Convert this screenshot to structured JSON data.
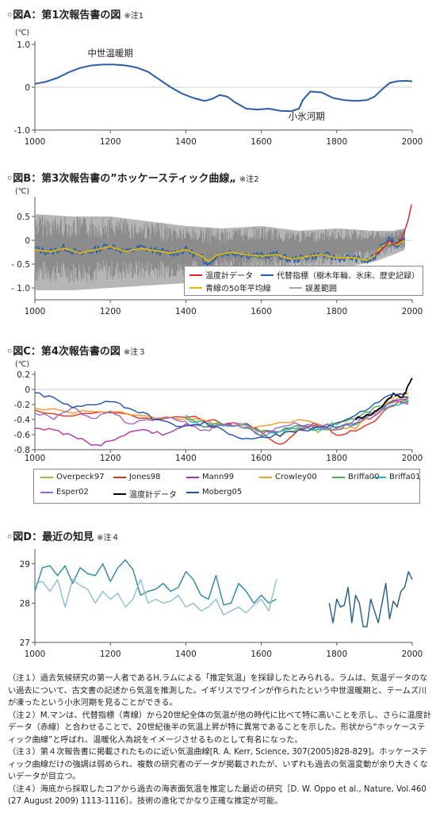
{
  "panels": {
    "a": {
      "title": "◦図A：第1次報告書の図",
      "note": "※注1"
    },
    "b": {
      "title": "◦図B：第3次報告書の”ホッケースティック曲線„",
      "note": "※注2"
    },
    "c": {
      "title": "◦図C：第4次報告書の図",
      "note": "※注３"
    },
    "d": {
      "title": "◦図D：最近の知見",
      "note": "※注４"
    }
  },
  "chart_data": [
    {
      "id": "A",
      "type": "line",
      "unit": "(℃)",
      "xlim": [
        1000,
        2000
      ],
      "ylim": [
        -1.0,
        1.0
      ],
      "xticks": [
        1000,
        1200,
        1400,
        1600,
        1800,
        2000
      ],
      "yticks": [
        {
          "v": 1.0,
          "label": "1.0"
        },
        {
          "v": 0,
          "label": "0"
        },
        {
          "v": -1.0,
          "label": "-1.0"
        }
      ],
      "annotations": [
        {
          "text": "中世温暖期",
          "x": 1200,
          "y": 0.72
        },
        {
          "text": "小氷河期",
          "x": 1720,
          "y": -0.75
        }
      ],
      "series": [
        {
          "color": "#2b5ca8",
          "x": [
            1000,
            1030,
            1060,
            1090,
            1120,
            1150,
            1180,
            1210,
            1240,
            1270,
            1300,
            1330,
            1360,
            1390,
            1420,
            1450,
            1470,
            1490,
            1510,
            1530,
            1560,
            1590,
            1620,
            1650,
            1680,
            1700,
            1710,
            1730,
            1760,
            1790,
            1820,
            1850,
            1880,
            1900,
            1920,
            1940,
            1960,
            1980,
            2000
          ],
          "y": [
            0.08,
            0.13,
            0.22,
            0.35,
            0.45,
            0.51,
            0.53,
            0.53,
            0.51,
            0.46,
            0.36,
            0.18,
            0.0,
            -0.15,
            -0.25,
            -0.32,
            -0.27,
            -0.18,
            -0.22,
            -0.35,
            -0.5,
            -0.52,
            -0.5,
            -0.55,
            -0.56,
            -0.5,
            -0.3,
            -0.1,
            -0.12,
            -0.25,
            -0.3,
            -0.32,
            -0.3,
            -0.22,
            -0.05,
            0.1,
            0.14,
            0.15,
            0.14
          ]
        }
      ]
    },
    {
      "id": "B",
      "type": "line",
      "unit": "(℃)",
      "xlim": [
        1000,
        2000
      ],
      "ylim": [
        -1.25,
        0.85
      ],
      "xticks": [
        1000,
        1200,
        1400,
        1600,
        1800,
        2000
      ],
      "yticks": [
        {
          "v": 0.5,
          "label": "0.5"
        },
        {
          "v": 0,
          "label": "0"
        },
        {
          "v": -0.5,
          "label": "- 0.5"
        },
        {
          "v": -1.0,
          "label": "- 1.0"
        }
      ],
      "uncertainty_color": "#a9a9a9",
      "uncertainty": {
        "x": [
          1000,
          1100,
          1200,
          1300,
          1400,
          1500,
          1600,
          1700,
          1800,
          1900,
          1950,
          1980
        ],
        "upper": [
          0.55,
          0.5,
          0.5,
          0.4,
          0.3,
          0.25,
          0.3,
          0.2,
          0.25,
          0.2,
          0.2,
          0.25
        ],
        "lower": [
          -1.05,
          -1.05,
          -1.0,
          -0.95,
          -0.9,
          -0.8,
          -0.75,
          -0.65,
          -0.6,
          -0.45,
          -0.3,
          -0.2
        ]
      },
      "series": [
        {
          "name": "代替指標（樹木年輪、氷床、歴史記録）",
          "color": "#1f5fb4",
          "x": [
            1000,
            1040,
            1080,
            1120,
            1160,
            1200,
            1240,
            1280,
            1320,
            1360,
            1400,
            1440,
            1460,
            1480,
            1520,
            1560,
            1600,
            1640,
            1680,
            1720,
            1760,
            1800,
            1840,
            1880,
            1900,
            1920,
            1940,
            1960,
            1980
          ],
          "y": [
            -0.18,
            -0.25,
            -0.15,
            -0.3,
            -0.2,
            -0.1,
            -0.25,
            -0.15,
            -0.22,
            -0.28,
            -0.2,
            -0.35,
            -0.5,
            -0.32,
            -0.25,
            -0.3,
            -0.33,
            -0.3,
            -0.42,
            -0.35,
            -0.3,
            -0.38,
            -0.36,
            -0.45,
            -0.35,
            -0.1,
            0.0,
            -0.1,
            0.05
          ]
        },
        {
          "name": "青線の50年平均線",
          "color": "#e6b800",
          "x": [
            1000,
            1040,
            1080,
            1120,
            1160,
            1200,
            1240,
            1280,
            1320,
            1360,
            1400,
            1440,
            1460,
            1480,
            1520,
            1560,
            1600,
            1640,
            1680,
            1720,
            1760,
            1800,
            1840,
            1880,
            1900,
            1920,
            1940,
            1960,
            1980
          ],
          "y": [
            -0.2,
            -0.24,
            -0.17,
            -0.27,
            -0.2,
            -0.13,
            -0.24,
            -0.17,
            -0.22,
            -0.27,
            -0.2,
            -0.32,
            -0.45,
            -0.32,
            -0.25,
            -0.3,
            -0.33,
            -0.3,
            -0.4,
            -0.34,
            -0.3,
            -0.37,
            -0.36,
            -0.42,
            -0.33,
            -0.12,
            -0.05,
            -0.1,
            0.0
          ]
        },
        {
          "name": "温度計データ",
          "color": "#e02020",
          "x": [
            1900,
            1920,
            1940,
            1950,
            1960,
            1970,
            1980,
            1990,
            1998
          ],
          "y": [
            -0.3,
            -0.2,
            0.0,
            -0.1,
            -0.05,
            0.0,
            0.2,
            0.45,
            0.75
          ]
        },
        {
          "name": "誤差範囲",
          "color": "#a9a9a9",
          "x": [],
          "y": []
        }
      ]
    },
    {
      "id": "C",
      "type": "line",
      "unit": "(℃)",
      "xlim": [
        1000,
        2000
      ],
      "ylim": [
        -0.8,
        0.2
      ],
      "xticks": [
        1000,
        1200,
        1400,
        1600,
        1800,
        2000
      ],
      "yticks": [
        {
          "v": 0.2,
          "label": "0.2"
        },
        {
          "v": 0,
          "label": "0"
        },
        {
          "v": -0.2,
          "label": "-0.2"
        },
        {
          "v": -0.4,
          "label": "-0.4"
        },
        {
          "v": -0.6,
          "label": "-0.6"
        },
        {
          "v": -0.8,
          "label": "-0.8"
        }
      ],
      "series": [
        {
          "name": "Overpeck97",
          "color": "#8fbf3a",
          "x": [
            1600,
            1650,
            1700,
            1750,
            1800,
            1850,
            1900,
            1950,
            1990
          ],
          "y": [
            -0.55,
            -0.6,
            -0.5,
            -0.55,
            -0.5,
            -0.45,
            -0.3,
            -0.15,
            -0.1
          ]
        },
        {
          "name": "Jones98",
          "color": "#e03020",
          "x": [
            1000,
            1100,
            1200,
            1300,
            1400,
            1500,
            1550,
            1600,
            1650,
            1700,
            1750,
            1800,
            1850,
            1900,
            1950,
            1990
          ],
          "y": [
            -0.3,
            -0.35,
            -0.3,
            -0.4,
            -0.35,
            -0.45,
            -0.5,
            -0.55,
            -0.75,
            -0.55,
            -0.45,
            -0.6,
            -0.55,
            -0.4,
            -0.2,
            -0.15
          ]
        },
        {
          "name": "Mann99",
          "color": "#b030b0",
          "x": [
            1000,
            1050,
            1100,
            1150,
            1200,
            1250,
            1300,
            1350,
            1400,
            1450,
            1500,
            1550,
            1600,
            1650,
            1700,
            1750,
            1800,
            1850,
            1900,
            1950,
            1990
          ],
          "y": [
            -0.5,
            -0.55,
            -0.6,
            -0.75,
            -0.7,
            -0.55,
            -0.55,
            -0.6,
            -0.45,
            -0.5,
            -0.48,
            -0.45,
            -0.55,
            -0.55,
            -0.5,
            -0.45,
            -0.5,
            -0.45,
            -0.35,
            -0.15,
            -0.12
          ]
        },
        {
          "name": "Crowley00",
          "color": "#f29a2e",
          "x": [
            1000,
            1100,
            1200,
            1300,
            1400,
            1500,
            1600,
            1700,
            1800,
            1850,
            1900,
            1950,
            1990
          ],
          "y": [
            -0.25,
            -0.3,
            -0.28,
            -0.35,
            -0.4,
            -0.45,
            -0.5,
            -0.4,
            -0.55,
            -0.5,
            -0.3,
            -0.1,
            -0.05
          ]
        },
        {
          "name": "Briffa00",
          "color": "#4ab04a",
          "x": [
            1400,
            1450,
            1500,
            1550,
            1600,
            1650,
            1700,
            1750,
            1800,
            1850,
            1900,
            1950,
            1990
          ],
          "y": [
            -0.35,
            -0.5,
            -0.45,
            -0.5,
            -0.55,
            -0.55,
            -0.45,
            -0.5,
            -0.45,
            -0.4,
            -0.25,
            -0.15,
            -0.15
          ]
        },
        {
          "name": "Briffa01",
          "color": "#2aa8c8",
          "x": [
            1400,
            1450,
            1500,
            1550,
            1600,
            1650,
            1700,
            1750,
            1800,
            1850,
            1900,
            1950,
            1990
          ],
          "y": [
            -0.4,
            -0.45,
            -0.5,
            -0.45,
            -0.6,
            -0.55,
            -0.5,
            -0.55,
            -0.5,
            -0.45,
            -0.3,
            -0.2,
            -0.18
          ]
        },
        {
          "name": "Esper02",
          "color": "#9a6ac0",
          "x": [
            1000,
            1050,
            1100,
            1150,
            1200,
            1250,
            1300,
            1350,
            1400,
            1450,
            1500,
            1550,
            1600,
            1650,
            1700,
            1750,
            1800,
            1850,
            1900,
            1950,
            1990
          ],
          "y": [
            -0.3,
            -0.38,
            -0.25,
            -0.4,
            -0.3,
            -0.45,
            -0.4,
            -0.38,
            -0.45,
            -0.55,
            -0.45,
            -0.5,
            -0.6,
            -0.5,
            -0.45,
            -0.5,
            -0.55,
            -0.4,
            -0.3,
            -0.15,
            -0.2
          ]
        },
        {
          "name": "温度計データ",
          "color": "#000000",
          "x": [
            1850,
            1875,
            1900,
            1925,
            1950,
            1975,
            1990,
            2000
          ],
          "y": [
            -0.4,
            -0.35,
            -0.3,
            -0.2,
            -0.05,
            -0.1,
            0.05,
            0.15
          ]
        },
        {
          "name": "Moberg05",
          "color": "#1f4fa8",
          "x": [
            1000,
            1050,
            1100,
            1150,
            1200,
            1250,
            1300,
            1350,
            1400,
            1450,
            1500,
            1550,
            1600,
            1650,
            1700,
            1750,
            1800,
            1850,
            1900,
            1950,
            1990
          ],
          "y": [
            -0.05,
            -0.12,
            -0.25,
            -0.2,
            -0.15,
            -0.25,
            -0.35,
            -0.45,
            -0.5,
            -0.45,
            -0.55,
            -0.65,
            -0.65,
            -0.6,
            -0.55,
            -0.5,
            -0.45,
            -0.35,
            -0.2,
            -0.05,
            -0.1
          ]
        }
      ]
    },
    {
      "id": "D",
      "type": "line",
      "xlim": [
        1000,
        2000
      ],
      "ylim": [
        27,
        29.3
      ],
      "xticks": [
        1000,
        1200,
        1400,
        1600,
        1800,
        2000
      ],
      "yticks": [
        {
          "v": 29,
          "label": "29"
        },
        {
          "v": 28,
          "label": "28"
        },
        {
          "v": 27,
          "label": "27"
        }
      ],
      "series": [
        {
          "color": "#2a86a6",
          "x": [
            1000,
            1020,
            1040,
            1060,
            1080,
            1100,
            1120,
            1140,
            1160,
            1180,
            1200,
            1220,
            1240,
            1260,
            1280,
            1300,
            1320,
            1340,
            1360,
            1380,
            1400,
            1420,
            1440,
            1460,
            1480,
            1500,
            1520,
            1540,
            1560,
            1580,
            1600,
            1620,
            1640
          ],
          "y": [
            28.3,
            28.9,
            28.95,
            28.7,
            28.95,
            28.5,
            28.9,
            28.75,
            28.7,
            29.0,
            28.55,
            28.9,
            29.1,
            28.85,
            28.2,
            28.3,
            28.35,
            28.5,
            28.3,
            28.4,
            28.8,
            28.6,
            28.2,
            28.1,
            28.7,
            27.95,
            28.0,
            28.5,
            28.3,
            28.0,
            28.2,
            28.0,
            28.1
          ]
        },
        {
          "color": "#8ac0d4",
          "x": [
            1000,
            1020,
            1040,
            1060,
            1080,
            1100,
            1120,
            1140,
            1160,
            1180,
            1200,
            1220,
            1240,
            1260,
            1280,
            1300,
            1320,
            1340,
            1360,
            1380,
            1400,
            1420,
            1440,
            1460,
            1480,
            1500,
            1520,
            1540,
            1560,
            1580,
            1600,
            1620,
            1640
          ],
          "y": [
            28.5,
            28.55,
            28.3,
            28.6,
            27.9,
            28.6,
            28.45,
            28.35,
            28.0,
            28.3,
            28.1,
            28.25,
            27.9,
            28.1,
            28.6,
            28.0,
            28.1,
            28.0,
            28.05,
            28.2,
            27.9,
            28.0,
            27.8,
            27.9,
            28.1,
            27.7,
            27.8,
            27.9,
            27.75,
            27.95,
            28.1,
            27.8,
            28.6
          ]
        },
        {
          "color": "#1f5a8a",
          "x": [
            1780,
            1790,
            1800,
            1810,
            1820,
            1830,
            1840,
            1850,
            1860,
            1870,
            1880,
            1890,
            1900,
            1910,
            1920,
            1930,
            1940,
            1950,
            1960,
            1970,
            1980,
            1990,
            2000
          ],
          "y": [
            28.0,
            27.5,
            28.1,
            27.9,
            27.95,
            28.4,
            27.5,
            28.2,
            28.0,
            27.4,
            27.4,
            28.1,
            27.8,
            27.5,
            28.0,
            28.5,
            27.6,
            28.05,
            27.9,
            28.3,
            28.4,
            28.8,
            28.6
          ]
        }
      ]
    }
  ],
  "legend_b": [
    {
      "label": "温度計データ",
      "color": "#e02020"
    },
    {
      "label": "代替指標（樹木年輪、氷床、歴史記録）",
      "color": "#1f5fb4"
    },
    {
      "label": "青線の50年平均線",
      "color": "#e6b800"
    },
    {
      "label": "誤差範囲",
      "color": "#a9a9a9"
    }
  ],
  "legend_c": [
    {
      "label": "Overpeck97",
      "color": "#8fbf3a"
    },
    {
      "label": "Jones98",
      "color": "#e03020"
    },
    {
      "label": "Mann99",
      "color": "#b030b0"
    },
    {
      "label": "Crowley00",
      "color": "#f29a2e"
    },
    {
      "label": "Briffa00",
      "color": "#4ab04a"
    },
    {
      "label": "Briffa01",
      "color": "#2aa8c8"
    },
    {
      "label": "Esper02",
      "color": "#9a6ac0"
    },
    {
      "label": "温度計データ",
      "color": "#000000"
    },
    {
      "label": "Moberg05",
      "color": "#1f4fa8"
    }
  ],
  "notes": [
    "（注１）過去気候研究の第一人者であるH.ラムによる「推定気温」を採録したとみられる。ラムは、気温データのない過去について、古文書の記述から気温を推測した。イギリスでワインが作られたという中世温暖期と、テームズ川が凍ったという小氷河期を見ることができる。",
    "（注２）M.マンは、代替指標（青線）から20世紀全体の気温が他の時代に比べて特に高いことを示し、さらに温度計データ（赤線）と合わせることで、20世紀後半の気温上昇が特に異常であることを示した。形状から“ホッケースティック曲線”と呼ばれ、温暖化人為説をイメージさせるものとして有名になった。",
    "（注３）第４次報告書に掲載されたものに近い気温曲線[R. A. Kerr, Science, 307(2005)828-829]。ホッケースティック曲線だけの強調は弱められ、複数の研究者のデータが掲載されたが、いずれも過去の気温変動が余り大きくないデータが目立つ。",
    "（注４）海底から採取したコアから過去の海表面気温を推定した最近の研究［D. W. Oppo et al., Nature, Vol.460 (27 August 2009) 1113-1116］。技術の進化でかなり正確な推定が可能。"
  ]
}
